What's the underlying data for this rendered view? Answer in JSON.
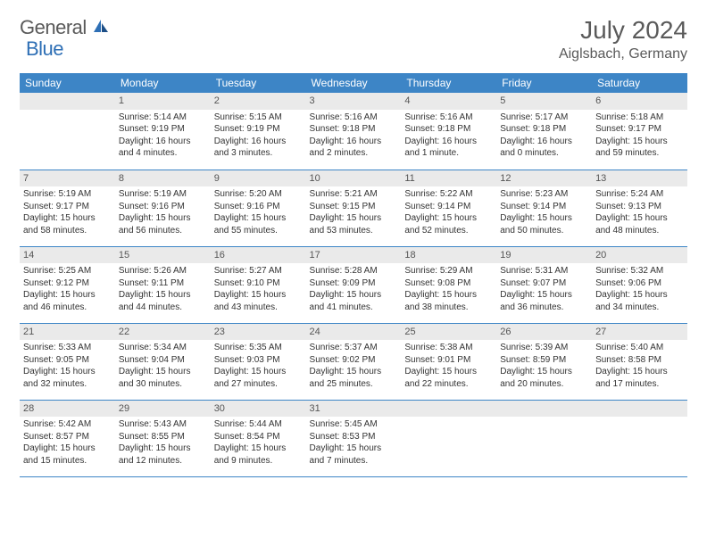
{
  "logo": {
    "text1": "General",
    "text2": "Blue"
  },
  "title": "July 2024",
  "location": "Aiglsbach, Germany",
  "colors": {
    "header_bg": "#3d85c6",
    "header_fg": "#ffffff",
    "border": "#3d85c6",
    "daynum_bg": "#eaeaea",
    "text": "#333333",
    "logo_gray": "#5a5a5a",
    "logo_blue": "#2e6fb5"
  },
  "weekdays": [
    "Sunday",
    "Monday",
    "Tuesday",
    "Wednesday",
    "Thursday",
    "Friday",
    "Saturday"
  ],
  "weeks": [
    [
      {
        "n": "",
        "lines": [
          "",
          "",
          "",
          ""
        ]
      },
      {
        "n": "1",
        "lines": [
          "Sunrise: 5:14 AM",
          "Sunset: 9:19 PM",
          "Daylight: 16 hours",
          "and 4 minutes."
        ]
      },
      {
        "n": "2",
        "lines": [
          "Sunrise: 5:15 AM",
          "Sunset: 9:19 PM",
          "Daylight: 16 hours",
          "and 3 minutes."
        ]
      },
      {
        "n": "3",
        "lines": [
          "Sunrise: 5:16 AM",
          "Sunset: 9:18 PM",
          "Daylight: 16 hours",
          "and 2 minutes."
        ]
      },
      {
        "n": "4",
        "lines": [
          "Sunrise: 5:16 AM",
          "Sunset: 9:18 PM",
          "Daylight: 16 hours",
          "and 1 minute."
        ]
      },
      {
        "n": "5",
        "lines": [
          "Sunrise: 5:17 AM",
          "Sunset: 9:18 PM",
          "Daylight: 16 hours",
          "and 0 minutes."
        ]
      },
      {
        "n": "6",
        "lines": [
          "Sunrise: 5:18 AM",
          "Sunset: 9:17 PM",
          "Daylight: 15 hours",
          "and 59 minutes."
        ]
      }
    ],
    [
      {
        "n": "7",
        "lines": [
          "Sunrise: 5:19 AM",
          "Sunset: 9:17 PM",
          "Daylight: 15 hours",
          "and 58 minutes."
        ]
      },
      {
        "n": "8",
        "lines": [
          "Sunrise: 5:19 AM",
          "Sunset: 9:16 PM",
          "Daylight: 15 hours",
          "and 56 minutes."
        ]
      },
      {
        "n": "9",
        "lines": [
          "Sunrise: 5:20 AM",
          "Sunset: 9:16 PM",
          "Daylight: 15 hours",
          "and 55 minutes."
        ]
      },
      {
        "n": "10",
        "lines": [
          "Sunrise: 5:21 AM",
          "Sunset: 9:15 PM",
          "Daylight: 15 hours",
          "and 53 minutes."
        ]
      },
      {
        "n": "11",
        "lines": [
          "Sunrise: 5:22 AM",
          "Sunset: 9:14 PM",
          "Daylight: 15 hours",
          "and 52 minutes."
        ]
      },
      {
        "n": "12",
        "lines": [
          "Sunrise: 5:23 AM",
          "Sunset: 9:14 PM",
          "Daylight: 15 hours",
          "and 50 minutes."
        ]
      },
      {
        "n": "13",
        "lines": [
          "Sunrise: 5:24 AM",
          "Sunset: 9:13 PM",
          "Daylight: 15 hours",
          "and 48 minutes."
        ]
      }
    ],
    [
      {
        "n": "14",
        "lines": [
          "Sunrise: 5:25 AM",
          "Sunset: 9:12 PM",
          "Daylight: 15 hours",
          "and 46 minutes."
        ]
      },
      {
        "n": "15",
        "lines": [
          "Sunrise: 5:26 AM",
          "Sunset: 9:11 PM",
          "Daylight: 15 hours",
          "and 44 minutes."
        ]
      },
      {
        "n": "16",
        "lines": [
          "Sunrise: 5:27 AM",
          "Sunset: 9:10 PM",
          "Daylight: 15 hours",
          "and 43 minutes."
        ]
      },
      {
        "n": "17",
        "lines": [
          "Sunrise: 5:28 AM",
          "Sunset: 9:09 PM",
          "Daylight: 15 hours",
          "and 41 minutes."
        ]
      },
      {
        "n": "18",
        "lines": [
          "Sunrise: 5:29 AM",
          "Sunset: 9:08 PM",
          "Daylight: 15 hours",
          "and 38 minutes."
        ]
      },
      {
        "n": "19",
        "lines": [
          "Sunrise: 5:31 AM",
          "Sunset: 9:07 PM",
          "Daylight: 15 hours",
          "and 36 minutes."
        ]
      },
      {
        "n": "20",
        "lines": [
          "Sunrise: 5:32 AM",
          "Sunset: 9:06 PM",
          "Daylight: 15 hours",
          "and 34 minutes."
        ]
      }
    ],
    [
      {
        "n": "21",
        "lines": [
          "Sunrise: 5:33 AM",
          "Sunset: 9:05 PM",
          "Daylight: 15 hours",
          "and 32 minutes."
        ]
      },
      {
        "n": "22",
        "lines": [
          "Sunrise: 5:34 AM",
          "Sunset: 9:04 PM",
          "Daylight: 15 hours",
          "and 30 minutes."
        ]
      },
      {
        "n": "23",
        "lines": [
          "Sunrise: 5:35 AM",
          "Sunset: 9:03 PM",
          "Daylight: 15 hours",
          "and 27 minutes."
        ]
      },
      {
        "n": "24",
        "lines": [
          "Sunrise: 5:37 AM",
          "Sunset: 9:02 PM",
          "Daylight: 15 hours",
          "and 25 minutes."
        ]
      },
      {
        "n": "25",
        "lines": [
          "Sunrise: 5:38 AM",
          "Sunset: 9:01 PM",
          "Daylight: 15 hours",
          "and 22 minutes."
        ]
      },
      {
        "n": "26",
        "lines": [
          "Sunrise: 5:39 AM",
          "Sunset: 8:59 PM",
          "Daylight: 15 hours",
          "and 20 minutes."
        ]
      },
      {
        "n": "27",
        "lines": [
          "Sunrise: 5:40 AM",
          "Sunset: 8:58 PM",
          "Daylight: 15 hours",
          "and 17 minutes."
        ]
      }
    ],
    [
      {
        "n": "28",
        "lines": [
          "Sunrise: 5:42 AM",
          "Sunset: 8:57 PM",
          "Daylight: 15 hours",
          "and 15 minutes."
        ]
      },
      {
        "n": "29",
        "lines": [
          "Sunrise: 5:43 AM",
          "Sunset: 8:55 PM",
          "Daylight: 15 hours",
          "and 12 minutes."
        ]
      },
      {
        "n": "30",
        "lines": [
          "Sunrise: 5:44 AM",
          "Sunset: 8:54 PM",
          "Daylight: 15 hours",
          "and 9 minutes."
        ]
      },
      {
        "n": "31",
        "lines": [
          "Sunrise: 5:45 AM",
          "Sunset: 8:53 PM",
          "Daylight: 15 hours",
          "and 7 minutes."
        ]
      },
      {
        "n": "",
        "lines": [
          "",
          "",
          "",
          ""
        ]
      },
      {
        "n": "",
        "lines": [
          "",
          "",
          "",
          ""
        ]
      },
      {
        "n": "",
        "lines": [
          "",
          "",
          "",
          ""
        ]
      }
    ]
  ]
}
